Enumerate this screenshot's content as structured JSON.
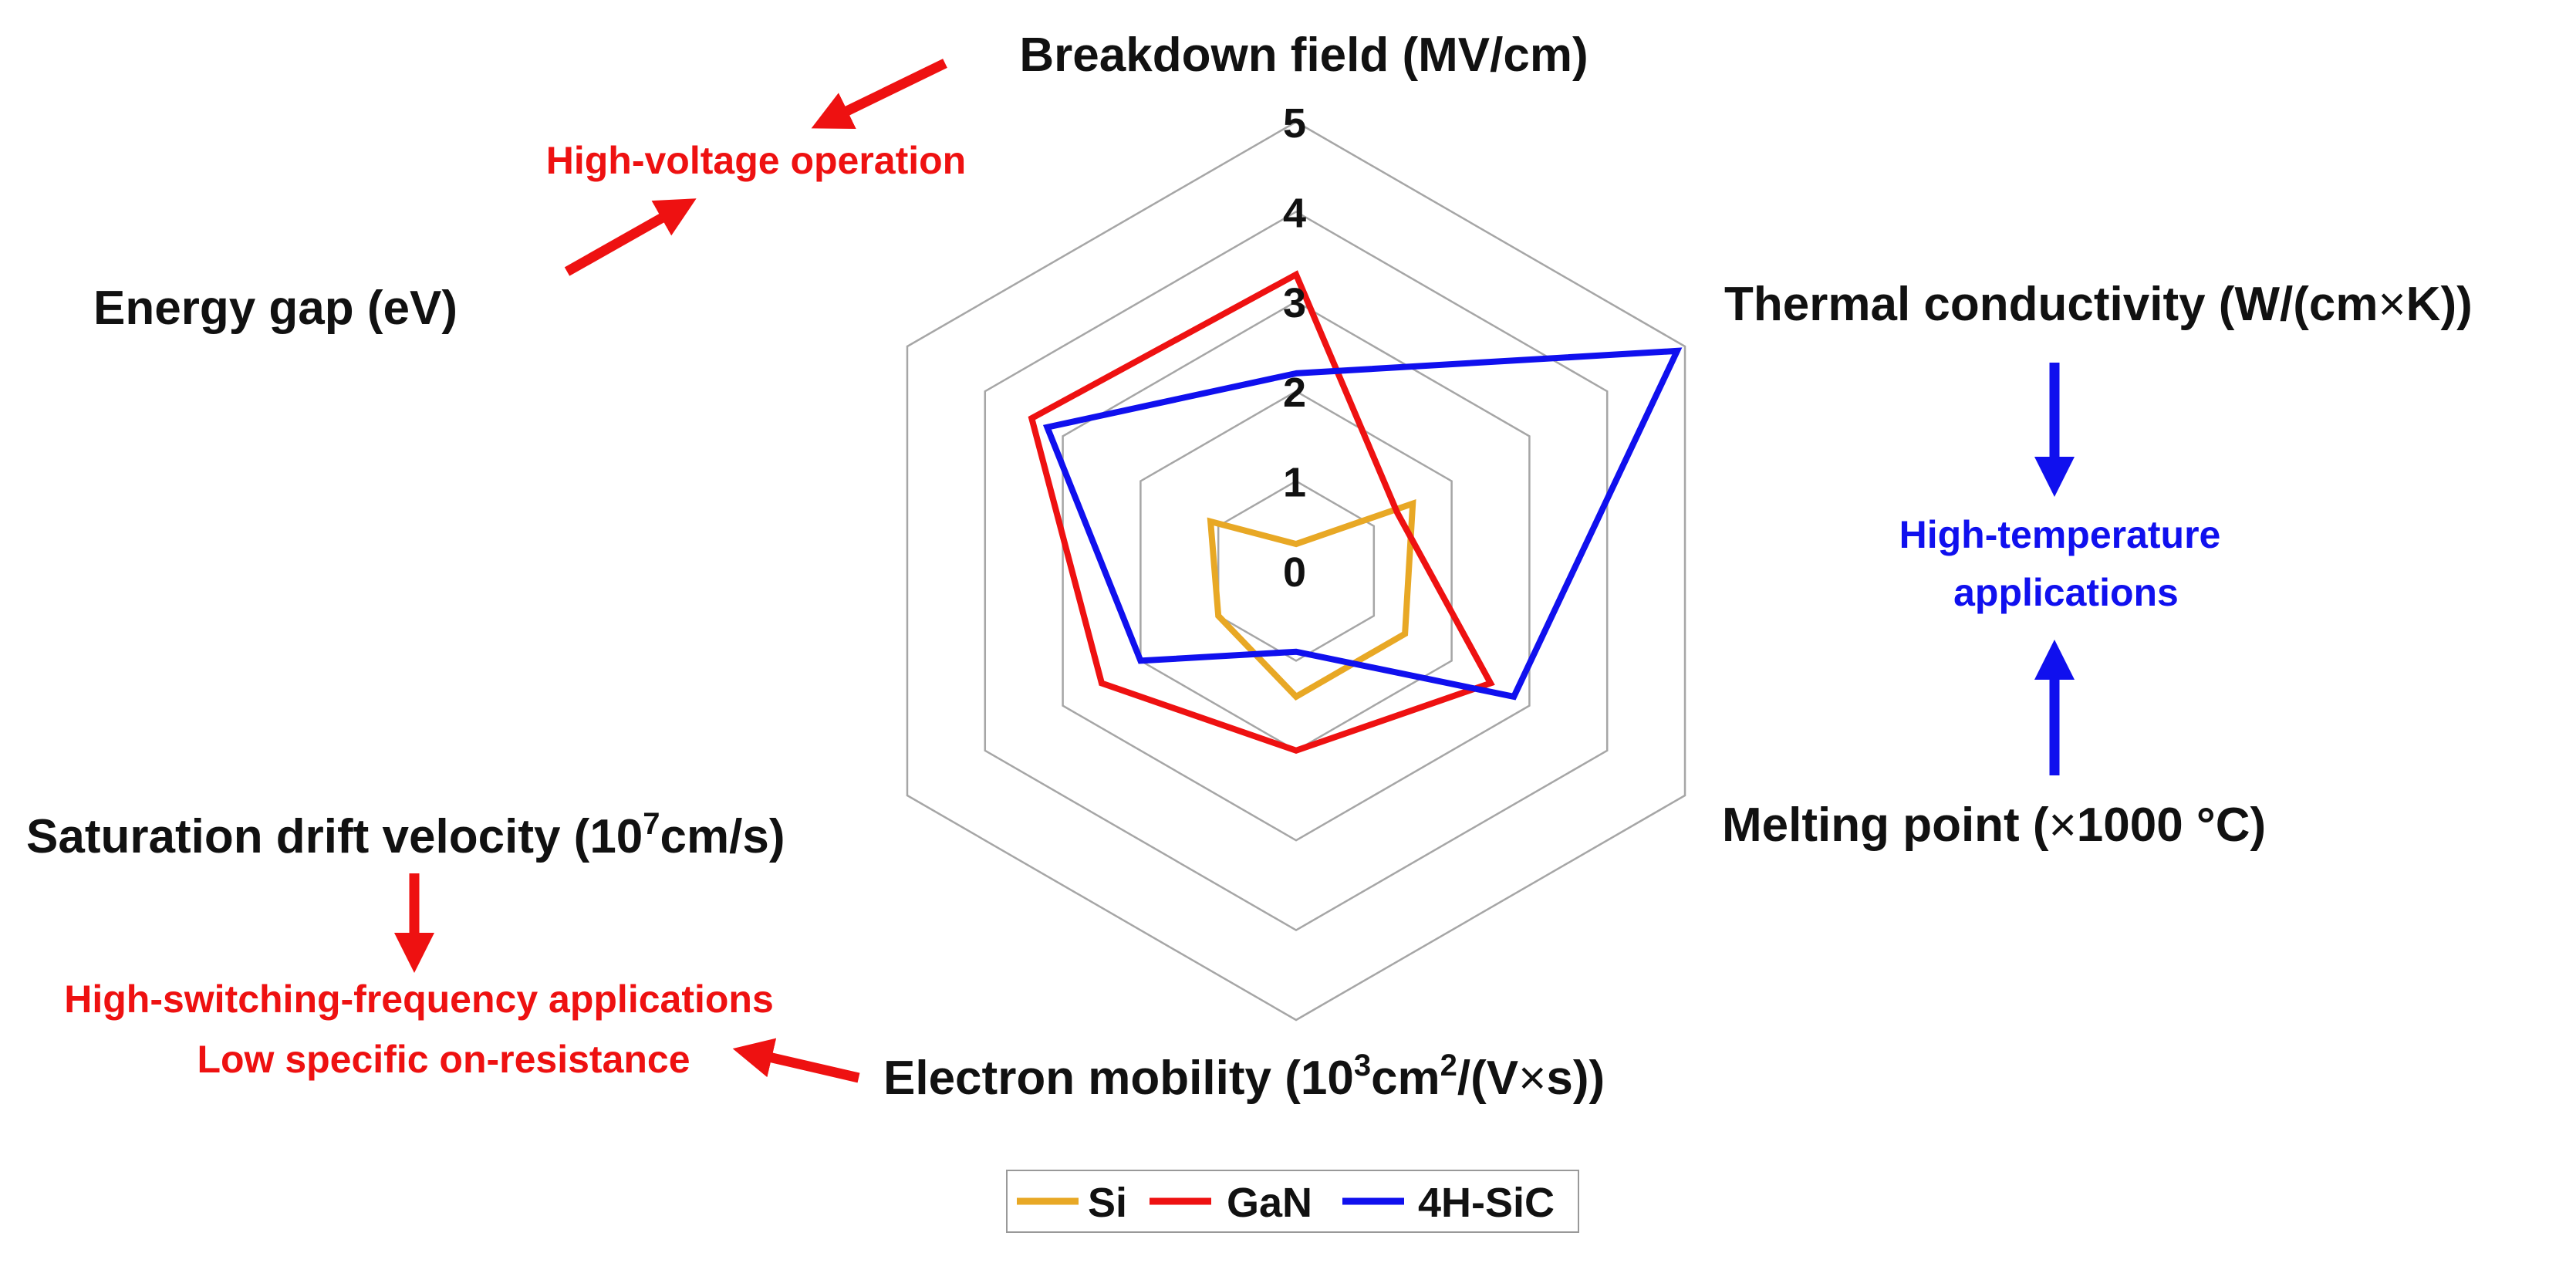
{
  "chart_data": {
    "type": "radar",
    "title": "",
    "axes": [
      "Breakdown field (MV/cm)",
      "Thermal conductivity (W/(cm×K))",
      "Melting point (×1000 °C)",
      "Electron mobility (10^3cm^2/(V×s))",
      "Saturation drift velocity (10^7cm/s)",
      "Energy gap (eV)"
    ],
    "rlim": [
      0,
      5
    ],
    "ticks": [
      "0",
      "1",
      "2",
      "3",
      "4",
      "5"
    ],
    "grid": true,
    "legend_position": "bottom-center",
    "series": [
      {
        "name": "Si",
        "color": "#E8A825",
        "values": [
          0.3,
          1.5,
          1.4,
          1.4,
          1.0,
          1.1
        ]
      },
      {
        "name": "GaN",
        "color": "#EE1111",
        "values": [
          3.3,
          1.3,
          2.5,
          2.0,
          2.5,
          3.4
        ]
      },
      {
        "name": "4H-SiC",
        "color": "#1010EE",
        "values": [
          2.2,
          4.9,
          2.8,
          0.9,
          2.0,
          3.2
        ]
      }
    ]
  },
  "axis_labels": {
    "breakdown": "Breakdown field (MV/cm)",
    "thermal": "Thermal conductivity (W/(cm",
    "thermal_close": "K))",
    "melting_prefix": "Melting point (",
    "melting_suffix": "1000 °C)",
    "mobility_prefix": "Electron mobility (10",
    "mobility_exp1": "3",
    "mobility_mid": "cm",
    "mobility_exp2": "2",
    "mobility_mid2": "/(V",
    "mobility_suffix": "s))",
    "saturation_prefix": "Saturation drift velocity (10",
    "saturation_exp": "7",
    "saturation_suffix": "cm/s)",
    "energy": "Energy gap (eV)",
    "times": "×"
  },
  "annotations": {
    "high_voltage": "High-voltage operation",
    "high_temp_line1": "High-temperature",
    "high_temp_line2": "applications",
    "switching_line1": "High-switching-frequency applications",
    "switching_line2": "Low specific on-resistance"
  },
  "colors": {
    "red_note": "#EE1111",
    "blue_note": "#1010EE",
    "grid": "#A6A6A6"
  }
}
